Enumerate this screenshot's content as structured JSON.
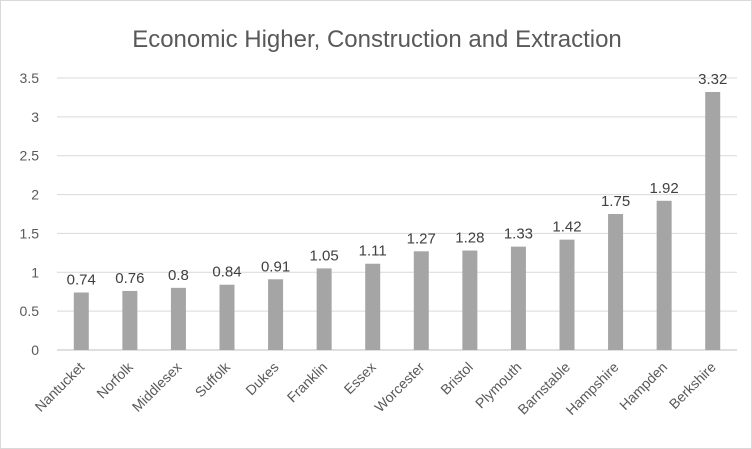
{
  "chart_data": {
    "type": "bar",
    "title": "Economic Higher, Construction and Extraction",
    "xlabel": "",
    "ylabel": "",
    "ylim": [
      0,
      3.5
    ],
    "yticks": [
      "0",
      "0.5",
      "1",
      "1.5",
      "2",
      "2.5",
      "3",
      "3.5"
    ],
    "grid": true,
    "legend": "none",
    "bar_color": "#a5a5a5",
    "categories": [
      "Nantucket",
      "Norfolk",
      "Middlesex",
      "Suffolk",
      "Dukes",
      "Franklin",
      "Essex",
      "Worcester",
      "Bristol",
      "Plymouth",
      "Barnstable",
      "Hampshire",
      "Hampden",
      "Berkshire"
    ],
    "values": [
      0.74,
      0.76,
      0.8,
      0.84,
      0.91,
      1.05,
      1.11,
      1.27,
      1.28,
      1.33,
      1.42,
      1.75,
      1.92,
      3.32
    ],
    "data_labels": [
      "0.74",
      "0.76",
      "0.8",
      "0.84",
      "0.91",
      "1.05",
      "1.11",
      "1.27",
      "1.28",
      "1.33",
      "1.42",
      "1.75",
      "1.92",
      "3.32"
    ]
  }
}
